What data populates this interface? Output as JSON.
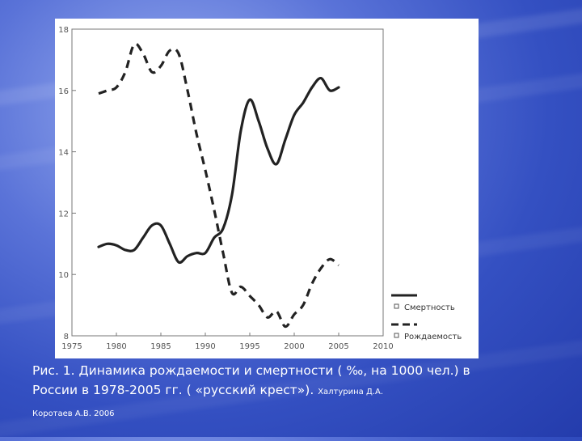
{
  "chart_data": {
    "type": "line",
    "x_ticks": [
      "1975",
      "1980",
      "1985",
      "1990",
      "1995",
      "2000",
      "2005",
      "2010"
    ],
    "y_ticks": [
      "8",
      "10",
      "12",
      "14",
      "16",
      "18"
    ],
    "xlim": [
      1975,
      2010
    ],
    "ylim": [
      8,
      18
    ],
    "legend_position": "bottom-right",
    "series": [
      {
        "name": "Смертность",
        "style": "solid",
        "color": "#222222",
        "points": [
          [
            1978,
            10.9
          ],
          [
            1979,
            11.0
          ],
          [
            1980,
            10.95
          ],
          [
            1981,
            10.8
          ],
          [
            1982,
            10.8
          ],
          [
            1983,
            11.2
          ],
          [
            1984,
            11.6
          ],
          [
            1985,
            11.6
          ],
          [
            1986,
            11.0
          ],
          [
            1987,
            10.4
          ],
          [
            1988,
            10.6
          ],
          [
            1989,
            10.7
          ],
          [
            1990,
            10.7
          ],
          [
            1991,
            11.2
          ],
          [
            1992,
            11.5
          ],
          [
            1993,
            12.6
          ],
          [
            1994,
            14.7
          ],
          [
            1995,
            15.7
          ],
          [
            1996,
            15.0
          ],
          [
            1997,
            14.1
          ],
          [
            1998,
            13.6
          ],
          [
            1999,
            14.4
          ],
          [
            2000,
            15.2
          ],
          [
            2001,
            15.6
          ],
          [
            2002,
            16.1
          ],
          [
            2003,
            16.4
          ],
          [
            2004,
            16.0
          ],
          [
            2005,
            16.1
          ]
        ]
      },
      {
        "name": "Рождаемость",
        "style": "dashed",
        "color": "#222222",
        "points": [
          [
            1978,
            15.9
          ],
          [
            1979,
            16.0
          ],
          [
            1980,
            16.1
          ],
          [
            1981,
            16.6
          ],
          [
            1982,
            17.5
          ],
          [
            1983,
            17.2
          ],
          [
            1984,
            16.6
          ],
          [
            1985,
            16.8
          ],
          [
            1986,
            17.3
          ],
          [
            1987,
            17.2
          ],
          [
            1988,
            16.0
          ],
          [
            1989,
            14.6
          ],
          [
            1990,
            13.4
          ],
          [
            1991,
            12.1
          ],
          [
            1992,
            10.7
          ],
          [
            1993,
            9.4
          ],
          [
            1994,
            9.6
          ],
          [
            1995,
            9.3
          ],
          [
            1996,
            9.0
          ],
          [
            1997,
            8.6
          ],
          [
            1998,
            8.8
          ],
          [
            1999,
            8.3
          ],
          [
            2000,
            8.7
          ],
          [
            2001,
            9.0
          ],
          [
            2002,
            9.7
          ],
          [
            2003,
            10.2
          ],
          [
            2004,
            10.5
          ],
          [
            2005,
            10.3
          ]
        ]
      }
    ]
  },
  "caption": {
    "main": "Рис. 1. Динамика рождаемости и смертности ( ‰, на 1000 чел.) в России в 1978-2005 гг. ( «русский крест»). ",
    "authors_line1": "Халтурина Д.А.",
    "authors_line2": "Коротаев А.В. 2006"
  }
}
